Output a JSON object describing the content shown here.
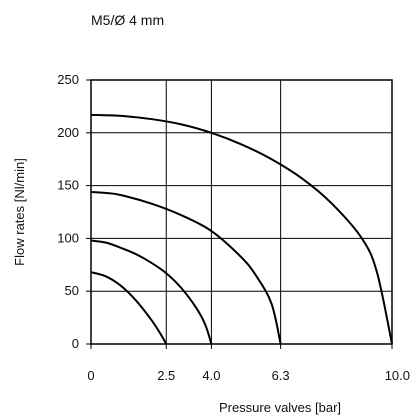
{
  "chart_data": {
    "type": "line",
    "title": "M5/Ø 4 mm",
    "xlabel": "Pressure valves [bar]",
    "ylabel": "Flow rates [Nl/min]",
    "xlim": [
      0,
      10
    ],
    "ylim": [
      0,
      250
    ],
    "x_ticks": [
      0,
      2.5,
      4.0,
      6.3,
      10.0
    ],
    "x_tick_labels": [
      "0",
      "2.5",
      "4.0",
      "6.3",
      "10.0"
    ],
    "y_ticks": [
      0,
      50,
      100,
      150,
      200,
      250
    ],
    "y_tick_labels": [
      "0",
      "50",
      "100",
      "150",
      "200",
      "250"
    ],
    "grid": true,
    "series": [
      {
        "x": [
          0,
          0.5,
          1.0,
          1.5,
          2.0,
          2.3,
          2.5
        ],
        "y": [
          68,
          64,
          55,
          41,
          23,
          10,
          0
        ]
      },
      {
        "x": [
          0,
          0.5,
          1.0,
          1.5,
          2.0,
          2.5,
          3.0,
          3.5,
          3.8,
          4.0
        ],
        "y": [
          98,
          96,
          91,
          85,
          77,
          67,
          53,
          34,
          18,
          0
        ]
      },
      {
        "x": [
          0,
          0.5,
          1.0,
          2.0,
          3.0,
          4.0,
          5.0,
          5.5,
          6.0,
          6.3
        ],
        "y": [
          144,
          143,
          141,
          133,
          122,
          107,
          82,
          64,
          38,
          0
        ]
      },
      {
        "x": [
          0,
          1.0,
          2.0,
          3.0,
          4.0,
          5.0,
          6.0,
          7.0,
          8.0,
          9.0,
          9.5,
          10.0
        ],
        "y": [
          217,
          216,
          213,
          208,
          200,
          189,
          175,
          157,
          133,
          100,
          68,
          0
        ]
      }
    ]
  }
}
